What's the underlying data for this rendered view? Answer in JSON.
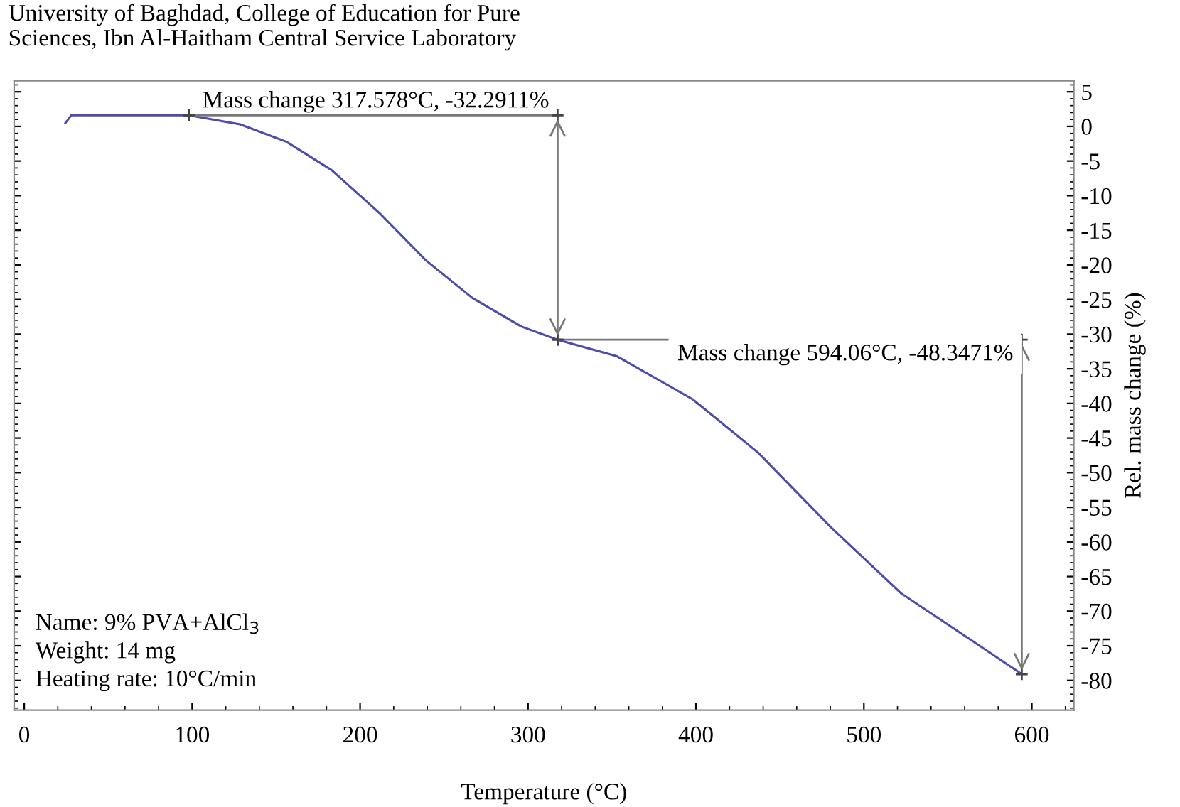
{
  "chart_data": {
    "type": "line",
    "xlabel": "Temperature (°C)",
    "ylabel": "Rel. mass change (%)",
    "series": [
      {
        "color": "#4b4bb0",
        "x": [
          24.5,
          28,
          98,
          128.5,
          156,
          183,
          211.5,
          239,
          267,
          296,
          317.6,
          353,
          398,
          437,
          480,
          522,
          564,
          594
        ],
        "values": [
          0.5,
          1.6,
          1.6,
          0.3,
          -2.2,
          -6.3,
          -12.5,
          -19.3,
          -24.8,
          -28.9,
          -30.8,
          -33.2,
          -39.4,
          -47.1,
          -57.8,
          -67.4,
          -74.2,
          -79.1
        ]
      }
    ],
    "xlim": [
      -6,
      625
    ],
    "xticks": [
      0,
      100,
      200,
      300,
      400,
      500,
      600
    ],
    "ylim": [
      -84.3,
      6.6
    ],
    "yticks": [
      5,
      0,
      -5,
      -10,
      -15,
      -20,
      -25,
      -30,
      -35,
      -40,
      -45,
      -50,
      -55,
      -60,
      -65,
      -70,
      -75,
      -80
    ],
    "grid": false,
    "marker": "none",
    "line_style": "solid",
    "annotations": [
      {
        "text": "Mass change 317.578°C, -32.2911%",
        "x": 317.6,
        "y": -30.8
      },
      {
        "text": "Mass change 594.06°C, -48.3471%",
        "x": 594,
        "y": -79.1
      },
      "University of Baghdad, College of Education for Pure\nSciences, Ibn Al-Haitham Central Service Laboratory",
      "Name: 9% PVA+AlCl$_{3}$\nWeight: 14 mg\nHeating rate: 10°C/min"
    ]
  }
}
